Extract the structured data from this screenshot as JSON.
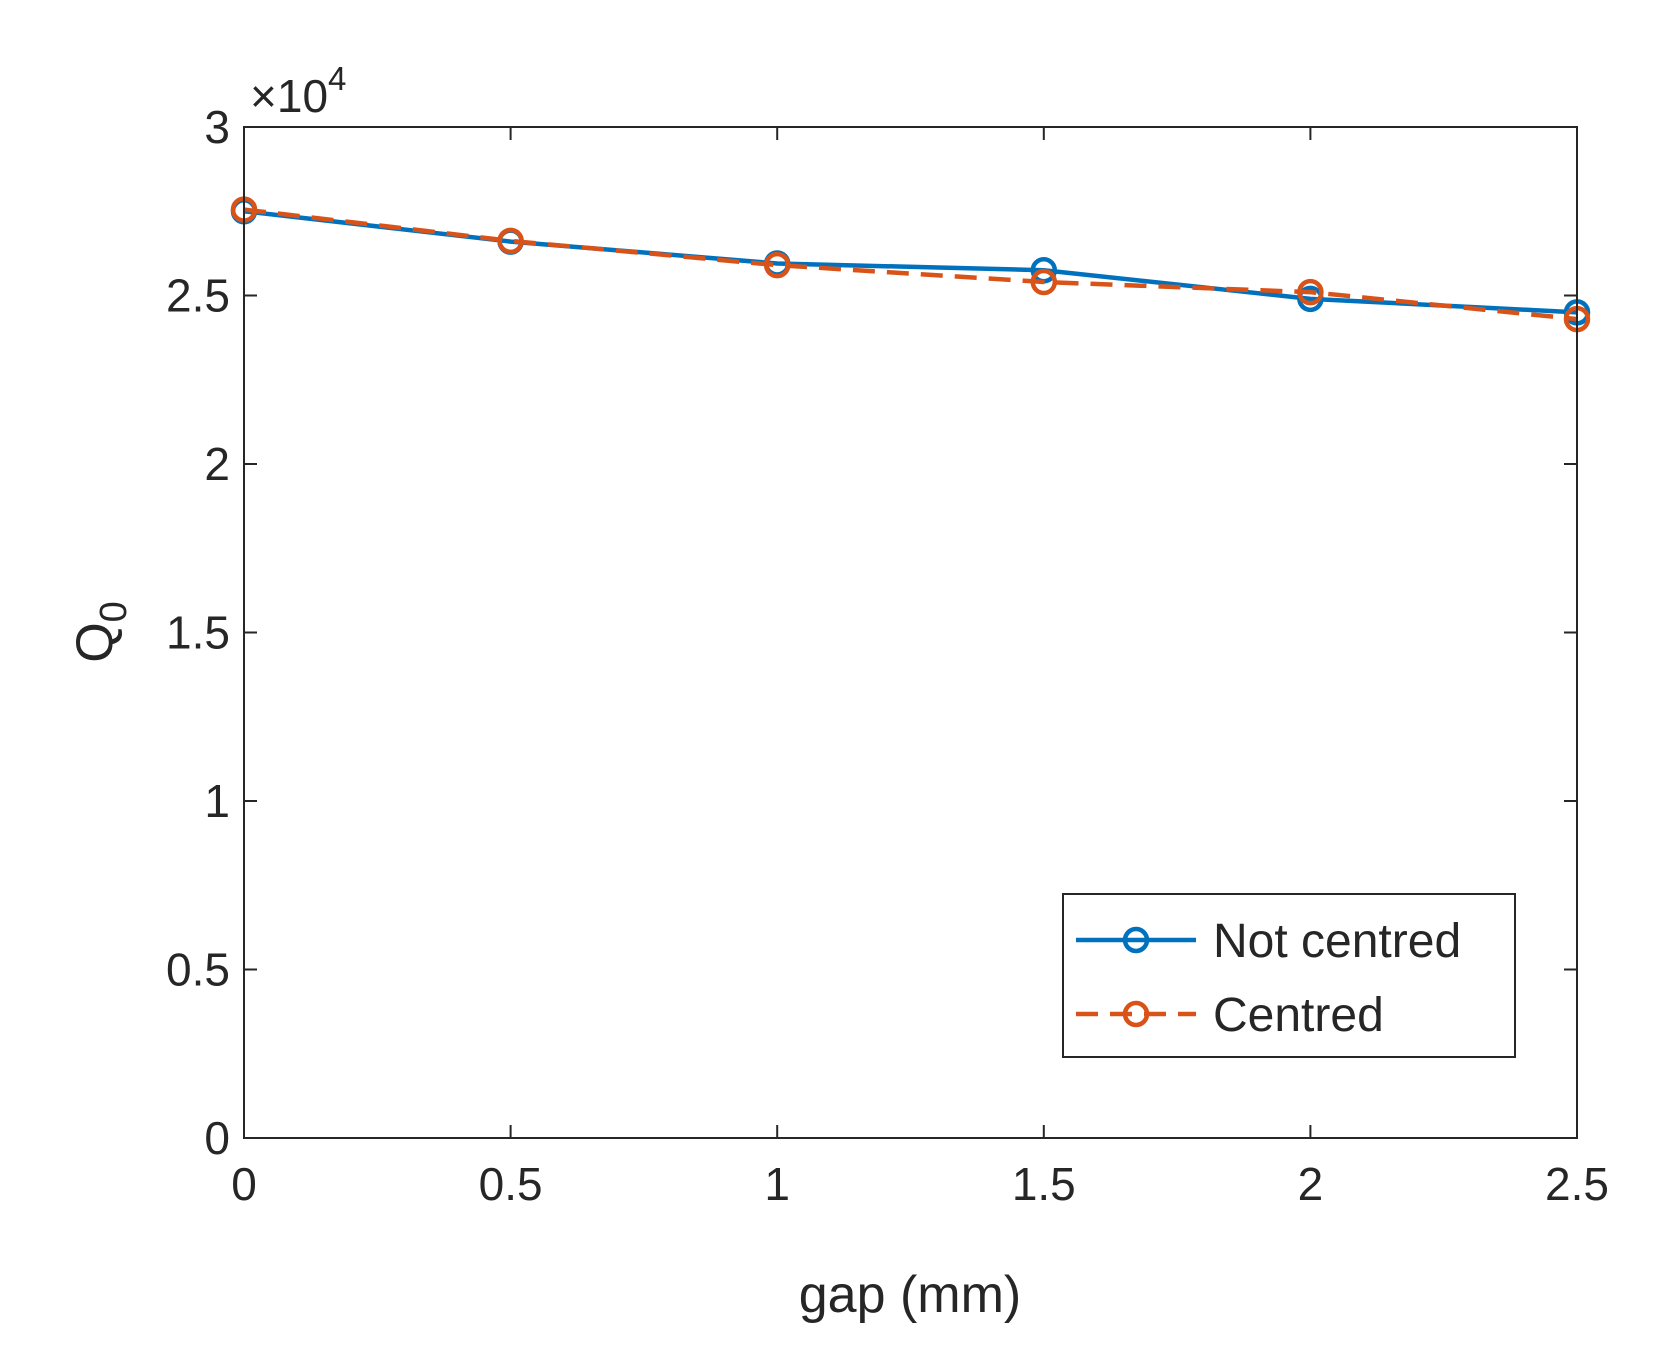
{
  "chart_data": {
    "type": "line",
    "title": "",
    "xlabel": "gap (mm)",
    "ylabel": "Q",
    "ylabel_subscript": "0",
    "y_exponent": {
      "base": "×10",
      "power": "4"
    },
    "xlim": [
      0,
      2.5
    ],
    "ylim": [
      0,
      3
    ],
    "x_ticks": [
      "0",
      "0.5",
      "1",
      "1.5",
      "2",
      "2.5"
    ],
    "y_ticks": [
      "0",
      "0.5",
      "1",
      "1.5",
      "2",
      "2.5",
      "3"
    ],
    "x": [
      0,
      0.5,
      1,
      1.5,
      2,
      2.5
    ],
    "series": [
      {
        "name": "Not centred",
        "values": [
          2.75,
          2.66,
          2.595,
          2.575,
          2.49,
          2.45
        ],
        "color": "#0072BD",
        "line_style": "solid",
        "marker": "circle"
      },
      {
        "name": "Centred",
        "values": [
          2.755,
          2.662,
          2.59,
          2.54,
          2.51,
          2.43
        ],
        "color": "#D95319",
        "line_style": "dashed",
        "marker": "circle"
      }
    ],
    "grid": false,
    "legend_position": "bottom-right",
    "box": true
  }
}
